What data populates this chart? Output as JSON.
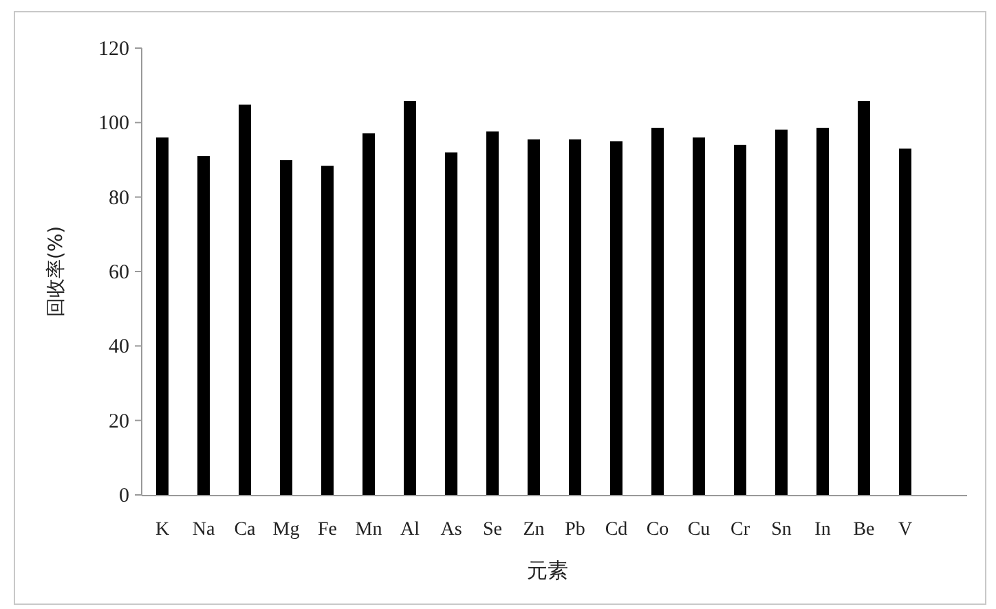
{
  "chart_data": {
    "type": "bar",
    "xlabel": "元素",
    "ylabel": "回收率(%)",
    "categories": [
      "K",
      "Na",
      "Ca",
      "Mg",
      "Fe",
      "Mn",
      "Al",
      "As",
      "Se",
      "Zn",
      "Pb",
      "Cd",
      "Co",
      "Cu",
      "Cr",
      "Sn",
      "In",
      "Be",
      "V"
    ],
    "values": [
      96.0,
      91.0,
      104.8,
      89.9,
      88.4,
      97.1,
      105.8,
      92.0,
      97.6,
      95.5,
      95.5,
      95.0,
      98.6,
      96.0,
      94.0,
      98.1,
      98.6,
      105.8,
      93.0
    ],
    "color": "#000000",
    "ylim": [
      0,
      120
    ],
    "yticks": [
      0,
      20,
      40,
      60,
      80,
      100,
      120
    ],
    "grid": false
  }
}
